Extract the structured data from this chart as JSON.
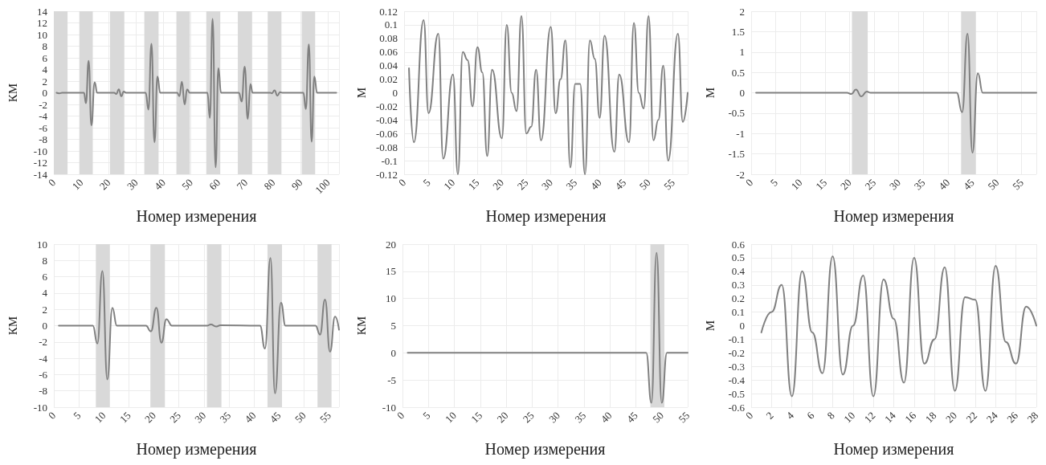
{
  "chart_data": [
    {
      "type": "line",
      "xlabel": "Номер измерения",
      "ylabel": "КМ",
      "xlim": [
        0,
        104
      ],
      "xticks": [
        0,
        10,
        20,
        30,
        40,
        50,
        60,
        70,
        80,
        90,
        100
      ],
      "ylim": [
        -14,
        14
      ],
      "yticks": [
        -14,
        -12,
        -10,
        -8,
        -6,
        -4,
        -2,
        0,
        2,
        4,
        6,
        8,
        10,
        12,
        14
      ],
      "grid": true,
      "series": [
        {
          "color": "#808080",
          "x": [
            1,
            2,
            3,
            11,
            11.7,
            12.7,
            13.7,
            14.9,
            15.8,
            22,
            22.8,
            23.7,
            24.6,
            25.5,
            26.3,
            33.5,
            34.5,
            35.6,
            36.7,
            37.8,
            38.8,
            45,
            45.8,
            46.7,
            47.7,
            48.6,
            49.6,
            56,
            56.9,
            57.9,
            59,
            60,
            61,
            67.5,
            68.5,
            69.6,
            70.7,
            71.7,
            72.5,
            79,
            79.5,
            80.5,
            81.5,
            82.5,
            83.3,
            91,
            91.9,
            93,
            94,
            95,
            96,
            103
          ],
          "values": [
            0,
            -0.1,
            0,
            0,
            -1.8,
            5.5,
            -5.6,
            1.8,
            0,
            0,
            -0.2,
            0.6,
            -0.6,
            0.2,
            0,
            0,
            -2.9,
            8.4,
            -8.5,
            2.8,
            0,
            0,
            -0.6,
            1.9,
            -2,
            0.6,
            0,
            0,
            -4.3,
            12.7,
            -12.8,
            4.2,
            0,
            0,
            -1.5,
            4.5,
            -4.5,
            1.5,
            0,
            0,
            -0.1,
            0.4,
            -0.5,
            0.1,
            0,
            0,
            -2.8,
            8.3,
            -8.4,
            2.8,
            0,
            0
          ]
        }
      ],
      "bands": [
        {
          "axis": "x",
          "from": 0,
          "to": 5,
          "color": "#d9d9d9"
        },
        {
          "axis": "x",
          "from": 9.3,
          "to": 14.2,
          "color": "#d9d9d9"
        },
        {
          "axis": "x",
          "from": 20.5,
          "to": 25.7,
          "color": "#d9d9d9"
        },
        {
          "axis": "x",
          "from": 33,
          "to": 38.2,
          "color": "#d9d9d9"
        },
        {
          "axis": "x",
          "from": 44.7,
          "to": 49.6,
          "color": "#d9d9d9"
        },
        {
          "axis": "x",
          "from": 55.6,
          "to": 60.7,
          "color": "#d9d9d9"
        },
        {
          "axis": "x",
          "from": 67.1,
          "to": 72.3,
          "color": "#d9d9d9"
        },
        {
          "axis": "x",
          "from": 78,
          "to": 83,
          "color": "#d9d9d9"
        },
        {
          "axis": "x",
          "from": 90.4,
          "to": 95.3,
          "color": "#d9d9d9"
        }
      ]
    },
    {
      "type": "line",
      "xlabel": "Номер измерения",
      "ylabel": "М",
      "xlim": [
        0,
        58
      ],
      "xticks": [
        0,
        5,
        10,
        15,
        20,
        25,
        30,
        35,
        40,
        45,
        50,
        55
      ],
      "ylim": [
        -0.12,
        0.12
      ],
      "yticks": [
        -0.12,
        -0.1,
        -0.08,
        -0.06,
        -0.04,
        -0.02,
        0,
        0.02,
        0.04,
        0.06,
        0.08,
        0.1,
        0.12
      ],
      "grid": true,
      "series": [
        {
          "color": "#808080",
          "x": [
            1,
            2,
            4,
            5,
            7,
            8,
            10,
            11,
            12,
            13,
            14,
            15,
            16,
            17,
            18,
            20,
            21,
            22,
            23,
            24,
            25,
            26,
            27,
            28,
            30,
            31,
            32,
            33,
            34,
            35,
            36,
            37,
            38,
            39,
            40,
            41,
            43,
            44,
            46,
            47,
            48,
            49,
            50,
            51,
            52,
            53,
            54,
            56,
            57,
            58
          ],
          "values": [
            0.036,
            -0.073,
            0.107,
            -0.03,
            0.087,
            -0.097,
            0.027,
            -0.12,
            0.06,
            0.048,
            -0.02,
            0.067,
            0.03,
            -0.093,
            0.034,
            -0.067,
            0.1,
            0,
            -0.027,
            0.113,
            -0.06,
            -0.05,
            0.034,
            -0.07,
            0.097,
            -0.03,
            0.02,
            0.077,
            -0.11,
            0.013,
            0.013,
            -0.12,
            0.077,
            0.05,
            -0.037,
            0.084,
            -0.087,
            0.027,
            -0.073,
            0.103,
            0,
            -0.023,
            0.113,
            -0.07,
            -0.04,
            0.04,
            -0.1,
            0.087,
            -0.043,
            0
          ]
        }
      ]
    },
    {
      "type": "line",
      "xlabel": "Номер измерения",
      "ylabel": "М",
      "xlim": [
        0,
        58
      ],
      "xticks": [
        0,
        5,
        10,
        15,
        20,
        25,
        30,
        35,
        40,
        45,
        50,
        55
      ],
      "ylim": [
        -2,
        2
      ],
      "yticks": [
        -2,
        -1.5,
        -1,
        -0.5,
        0,
        0.5,
        1,
        1.5,
        2
      ],
      "grid": true,
      "series": [
        {
          "color": "#808080",
          "x": [
            1,
            19.5,
            20.4,
            21.3,
            22.4,
            23.5,
            24.3,
            41.8,
            42.9,
            44,
            45,
            46.1,
            47.1,
            58
          ],
          "values": [
            0,
            0,
            -0.03,
            0.08,
            -0.09,
            0.03,
            0,
            0,
            -0.48,
            1.45,
            -1.47,
            0.48,
            0,
            0
          ]
        }
      ],
      "bands": [
        {
          "axis": "x",
          "from": 20.5,
          "to": 23.7,
          "color": "#d9d9d9"
        },
        {
          "axis": "x",
          "from": 42.7,
          "to": 45.7,
          "color": "#d9d9d9"
        }
      ]
    },
    {
      "type": "line",
      "xlabel": "Номер измерения",
      "ylabel": "КМ",
      "xlim": [
        0,
        57
      ],
      "xticks": [
        0,
        5,
        10,
        15,
        20,
        25,
        30,
        35,
        40,
        45,
        50,
        55
      ],
      "ylim": [
        -10,
        10
      ],
      "yticks": [
        -10,
        -8,
        -6,
        -4,
        -2,
        0,
        2,
        4,
        6,
        8,
        10
      ],
      "grid": true,
      "series": [
        {
          "color": "#808080",
          "x": [
            1,
            7.8,
            8.7,
            9.7,
            10.7,
            11.7,
            12.6,
            18.4,
            19.4,
            20.5,
            21.5,
            22.5,
            23.6,
            30.6,
            31.4,
            32.4,
            33.3,
            41.2,
            42.2,
            43.3,
            44.2,
            45.4,
            46.3,
            52.3,
            53.2,
            54.2,
            55.2,
            56.2,
            57
          ],
          "values": [
            0,
            0,
            -2.2,
            6.7,
            -6.6,
            2.2,
            0,
            0,
            -0.7,
            2.2,
            -2.1,
            0.8,
            0,
            0,
            0.15,
            -0.1,
            0.05,
            0,
            -2.8,
            8.3,
            -8.3,
            2.8,
            0,
            0,
            -1.1,
            3.2,
            -3.2,
            1.1,
            -0.5
          ]
        }
      ],
      "bands": [
        {
          "axis": "x",
          "from": 8.4,
          "to": 11.2,
          "color": "#d9d9d9"
        },
        {
          "axis": "x",
          "from": 19.3,
          "to": 22.2,
          "color": "#d9d9d9"
        },
        {
          "axis": "x",
          "from": 30.6,
          "to": 33.5,
          "color": "#d9d9d9"
        },
        {
          "axis": "x",
          "from": 42.7,
          "to": 45.6,
          "color": "#d9d9d9"
        },
        {
          "axis": "x",
          "from": 52.7,
          "to": 55.5,
          "color": "#d9d9d9"
        }
      ]
    },
    {
      "type": "line",
      "xlabel": "Номер измерения",
      "ylabel": "КМ",
      "xlim": [
        0,
        55
      ],
      "xticks": [
        0,
        5,
        10,
        15,
        20,
        25,
        30,
        35,
        40,
        45,
        50,
        55
      ],
      "ylim": [
        -10,
        20
      ],
      "yticks": [
        -10,
        -5,
        0,
        5,
        10,
        15,
        20
      ],
      "grid": true,
      "series": [
        {
          "color": "#808080",
          "x": [
            1,
            47,
            48,
            49,
            50,
            51,
            55
          ],
          "values": [
            0,
            0,
            -9.2,
            18.4,
            -9.2,
            0,
            0
          ]
        }
      ],
      "bands": [
        {
          "axis": "x",
          "from": 47.8,
          "to": 50.5,
          "color": "#d9d9d9"
        }
      ]
    },
    {
      "type": "line",
      "xlabel": "Номер измерения",
      "ylabel": "М",
      "xlim": [
        0,
        28
      ],
      "xticks": [
        0,
        2,
        4,
        6,
        8,
        10,
        12,
        14,
        16,
        18,
        20,
        22,
        24,
        26,
        28
      ],
      "ylim": [
        -0.6,
        0.6
      ],
      "yticks": [
        -0.6,
        -0.5,
        -0.4,
        -0.3,
        -0.2,
        -0.1,
        0,
        0.1,
        0.2,
        0.3,
        0.4,
        0.5,
        0.6
      ],
      "grid": true,
      "series": [
        {
          "color": "#808080",
          "x": [
            1,
            2,
            3,
            4,
            5,
            6,
            7,
            8,
            9,
            10,
            11,
            12,
            13,
            14,
            15,
            16,
            17,
            18,
            19,
            20,
            21,
            22,
            23,
            24,
            25,
            26,
            27,
            28
          ],
          "values": [
            -0.05,
            0.1,
            0.3,
            -0.52,
            0.4,
            -0.05,
            -0.35,
            0.51,
            -0.36,
            0,
            0.37,
            -0.52,
            0.34,
            0.05,
            -0.42,
            0.5,
            -0.28,
            -0.1,
            0.43,
            -0.48,
            0.21,
            0.19,
            -0.48,
            0.44,
            -0.12,
            -0.28,
            0.14,
            0
          ]
        }
      ]
    }
  ]
}
